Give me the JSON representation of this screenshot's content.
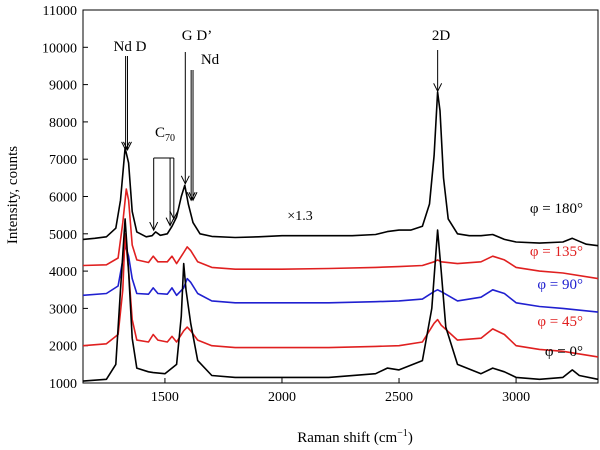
{
  "chart_data": {
    "type": "line",
    "title": "",
    "xlabel": "Raman shift (cm",
    "xlabel_sup": "−1",
    "xlabel_end": ")",
    "ylabel": "Intensity, counts",
    "xlim": [
      1150,
      3350
    ],
    "ylim": [
      1000,
      11000
    ],
    "x_ticks": [
      1500,
      2000,
      2500,
      3000
    ],
    "y_ticks": [
      1000,
      2000,
      3000,
      4000,
      5000,
      6000,
      7000,
      8000,
      9000,
      10000,
      11000
    ],
    "grid": false,
    "series": [
      {
        "name": "φ = 180°",
        "color": "#000000",
        "points": [
          [
            1150,
            4850
          ],
          [
            1200,
            4880
          ],
          [
            1250,
            4920
          ],
          [
            1290,
            5150
          ],
          [
            1310,
            5900
          ],
          [
            1330,
            7300
          ],
          [
            1345,
            6900
          ],
          [
            1360,
            5600
          ],
          [
            1380,
            5050
          ],
          [
            1420,
            4920
          ],
          [
            1445,
            4950
          ],
          [
            1460,
            5050
          ],
          [
            1480,
            4960
          ],
          [
            1510,
            5000
          ],
          [
            1530,
            5200
          ],
          [
            1550,
            5450
          ],
          [
            1570,
            6000
          ],
          [
            1585,
            6300
          ],
          [
            1600,
            5800
          ],
          [
            1620,
            5300
          ],
          [
            1650,
            5000
          ],
          [
            1700,
            4930
          ],
          [
            1800,
            4900
          ],
          [
            1900,
            4920
          ],
          [
            2000,
            4950
          ],
          [
            2100,
            4950
          ],
          [
            2200,
            4950
          ],
          [
            2300,
            4950
          ],
          [
            2400,
            4980
          ],
          [
            2450,
            5060
          ],
          [
            2500,
            5100
          ],
          [
            2550,
            5100
          ],
          [
            2600,
            5200
          ],
          [
            2630,
            5800
          ],
          [
            2650,
            7100
          ],
          [
            2665,
            8800
          ],
          [
            2675,
            8300
          ],
          [
            2690,
            6500
          ],
          [
            2710,
            5400
          ],
          [
            2750,
            5000
          ],
          [
            2800,
            4950
          ],
          [
            2850,
            4950
          ],
          [
            2900,
            4980
          ],
          [
            2950,
            4850
          ],
          [
            3000,
            4780
          ],
          [
            3100,
            4750
          ],
          [
            3200,
            4780
          ],
          [
            3240,
            4880
          ],
          [
            3270,
            4800
          ],
          [
            3300,
            4720
          ],
          [
            3350,
            4680
          ]
        ]
      },
      {
        "name": "φ = 135°",
        "color": "#e02020",
        "points": [
          [
            1150,
            4150
          ],
          [
            1250,
            4170
          ],
          [
            1300,
            4350
          ],
          [
            1320,
            5300
          ],
          [
            1335,
            6200
          ],
          [
            1345,
            5900
          ],
          [
            1360,
            4700
          ],
          [
            1380,
            4300
          ],
          [
            1430,
            4230
          ],
          [
            1450,
            4400
          ],
          [
            1470,
            4250
          ],
          [
            1510,
            4250
          ],
          [
            1530,
            4400
          ],
          [
            1550,
            4200
          ],
          [
            1580,
            4500
          ],
          [
            1595,
            4650
          ],
          [
            1610,
            4550
          ],
          [
            1640,
            4250
          ],
          [
            1700,
            4100
          ],
          [
            1800,
            4050
          ],
          [
            2000,
            4050
          ],
          [
            2200,
            4070
          ],
          [
            2400,
            4100
          ],
          [
            2500,
            4120
          ],
          [
            2600,
            4150
          ],
          [
            2650,
            4250
          ],
          [
            2665,
            4300
          ],
          [
            2680,
            4250
          ],
          [
            2750,
            4200
          ],
          [
            2850,
            4250
          ],
          [
            2900,
            4400
          ],
          [
            2950,
            4300
          ],
          [
            3000,
            4100
          ],
          [
            3100,
            4000
          ],
          [
            3200,
            3950
          ],
          [
            3350,
            3800
          ]
        ]
      },
      {
        "name": "φ = 90°",
        "color": "#2020d0",
        "points": [
          [
            1150,
            3350
          ],
          [
            1250,
            3400
          ],
          [
            1300,
            3600
          ],
          [
            1320,
            4300
          ],
          [
            1330,
            4700
          ],
          [
            1345,
            4400
          ],
          [
            1360,
            3800
          ],
          [
            1380,
            3400
          ],
          [
            1430,
            3380
          ],
          [
            1450,
            3550
          ],
          [
            1470,
            3400
          ],
          [
            1510,
            3380
          ],
          [
            1530,
            3550
          ],
          [
            1550,
            3350
          ],
          [
            1580,
            3550
          ],
          [
            1595,
            3800
          ],
          [
            1610,
            3700
          ],
          [
            1640,
            3400
          ],
          [
            1700,
            3200
          ],
          [
            1800,
            3150
          ],
          [
            2000,
            3150
          ],
          [
            2200,
            3150
          ],
          [
            2400,
            3180
          ],
          [
            2500,
            3200
          ],
          [
            2600,
            3250
          ],
          [
            2650,
            3450
          ],
          [
            2665,
            3500
          ],
          [
            2680,
            3450
          ],
          [
            2750,
            3200
          ],
          [
            2850,
            3300
          ],
          [
            2900,
            3500
          ],
          [
            2950,
            3400
          ],
          [
            3000,
            3150
          ],
          [
            3100,
            3050
          ],
          [
            3200,
            3000
          ],
          [
            3350,
            2900
          ]
        ]
      },
      {
        "name": "φ = 45°",
        "color": "#e02020",
        "points": [
          [
            1150,
            2000
          ],
          [
            1250,
            2050
          ],
          [
            1300,
            2300
          ],
          [
            1320,
            3500
          ],
          [
            1330,
            5000
          ],
          [
            1345,
            4000
          ],
          [
            1360,
            2700
          ],
          [
            1380,
            2150
          ],
          [
            1430,
            2100
          ],
          [
            1450,
            2300
          ],
          [
            1470,
            2150
          ],
          [
            1510,
            2100
          ],
          [
            1530,
            2250
          ],
          [
            1550,
            2100
          ],
          [
            1580,
            2400
          ],
          [
            1595,
            2500
          ],
          [
            1610,
            2400
          ],
          [
            1640,
            2150
          ],
          [
            1700,
            2000
          ],
          [
            1800,
            1950
          ],
          [
            2000,
            1950
          ],
          [
            2200,
            1950
          ],
          [
            2400,
            1980
          ],
          [
            2500,
            2000
          ],
          [
            2600,
            2100
          ],
          [
            2650,
            2600
          ],
          [
            2665,
            2700
          ],
          [
            2680,
            2550
          ],
          [
            2750,
            2150
          ],
          [
            2850,
            2200
          ],
          [
            2900,
            2450
          ],
          [
            2950,
            2300
          ],
          [
            3000,
            2000
          ],
          [
            3100,
            1900
          ],
          [
            3200,
            1850
          ],
          [
            3350,
            1700
          ]
        ]
      },
      {
        "name": "φ = 0°",
        "color": "#000000",
        "points": [
          [
            1150,
            1050
          ],
          [
            1250,
            1100
          ],
          [
            1290,
            1500
          ],
          [
            1310,
            3500
          ],
          [
            1330,
            5400
          ],
          [
            1345,
            4000
          ],
          [
            1360,
            2200
          ],
          [
            1380,
            1400
          ],
          [
            1430,
            1300
          ],
          [
            1450,
            1280
          ],
          [
            1500,
            1250
          ],
          [
            1550,
            1500
          ],
          [
            1570,
            2800
          ],
          [
            1580,
            4200
          ],
          [
            1590,
            3500
          ],
          [
            1610,
            2600
          ],
          [
            1640,
            1600
          ],
          [
            1700,
            1200
          ],
          [
            1800,
            1150
          ],
          [
            2000,
            1150
          ],
          [
            2200,
            1150
          ],
          [
            2400,
            1250
          ],
          [
            2450,
            1400
          ],
          [
            2500,
            1350
          ],
          [
            2600,
            1600
          ],
          [
            2640,
            3000
          ],
          [
            2665,
            5100
          ],
          [
            2680,
            4000
          ],
          [
            2700,
            2500
          ],
          [
            2750,
            1500
          ],
          [
            2850,
            1250
          ],
          [
            2900,
            1400
          ],
          [
            2950,
            1300
          ],
          [
            3000,
            1150
          ],
          [
            3100,
            1100
          ],
          [
            3200,
            1150
          ],
          [
            3240,
            1350
          ],
          [
            3270,
            1200
          ],
          [
            3350,
            1100
          ]
        ]
      }
    ],
    "annotations": {
      "nd_d": "Nd D",
      "g_d": "G D’",
      "nd": "Nd",
      "c70": "C",
      "c70_sub": "70",
      "two_d": "2D",
      "scale": "×1.3"
    },
    "arrows": [
      {
        "x": 1332,
        "y": 7250
      },
      {
        "x": 1340,
        "y": 7250
      },
      {
        "x": 1587,
        "y": 6340
      },
      {
        "x": 1612,
        "y": 5900
      },
      {
        "x": 1620,
        "y": 5900
      },
      {
        "x": 1452,
        "y": 5100
      },
      {
        "x": 1522,
        "y": 5220
      },
      {
        "x": 1538,
        "y": 5400
      },
      {
        "x": 2665,
        "y": 8820
      }
    ]
  }
}
